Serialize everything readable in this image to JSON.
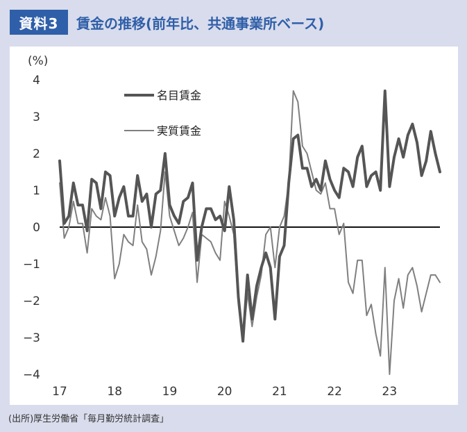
{
  "header": {
    "badge": "資料3",
    "title": "賃金の推移(前年比、共通事業所ベース)"
  },
  "source": "(出所)厚生労働省「毎月勤労統計調査」",
  "chart_data": {
    "type": "line",
    "ylabel": "(%)",
    "ylim": [
      -4,
      4
    ],
    "yticks": [
      "4",
      "3",
      "2",
      "1",
      "0",
      "−1",
      "−2",
      "−3",
      "−4"
    ],
    "xlabels": [
      "17",
      "18",
      "19",
      "20",
      "21",
      "22",
      "23"
    ],
    "legend_position": "top-left",
    "start": "2017-01",
    "series": [
      {
        "name": "名目賃金",
        "color": "#555555",
        "values": [
          1.8,
          0.1,
          0.3,
          1.2,
          0.6,
          0.6,
          -0.1,
          1.3,
          1.2,
          0.5,
          1.5,
          1.4,
          0.3,
          0.8,
          1.1,
          0.3,
          0.3,
          1.4,
          0.7,
          0.9,
          0.0,
          0.9,
          1.0,
          2.0,
          0.6,
          0.3,
          0.1,
          0.7,
          0.8,
          1.2,
          -0.9,
          0.0,
          0.5,
          0.5,
          0.2,
          0.3,
          -0.1,
          1.1,
          0.2,
          -1.9,
          -3.1,
          -1.3,
          -2.5,
          -1.6,
          -1.1,
          -0.7,
          -1.1,
          -2.5,
          -0.8,
          -0.5,
          1.2,
          2.4,
          2.5,
          1.6,
          1.6,
          1.1,
          1.3,
          1.0,
          1.8,
          1.3,
          1.0,
          0.8,
          1.6,
          1.5,
          1.1,
          1.9,
          2.2,
          1.1,
          1.4,
          1.5,
          1.0,
          3.7,
          1.1,
          1.9,
          2.4,
          1.9,
          2.5,
          2.8,
          2.3,
          1.4,
          1.8,
          2.6,
          2.0,
          1.5
        ]
      },
      {
        "name": "実質賃金",
        "color": "#7f7f7f",
        "values": [
          1.2,
          -0.3,
          0.0,
          0.7,
          0.1,
          0.1,
          -0.7,
          0.5,
          0.3,
          0.2,
          0.8,
          0.3,
          -1.4,
          -1.0,
          -0.2,
          -0.4,
          -0.5,
          0.6,
          -0.4,
          -0.6,
          -1.3,
          -0.8,
          -0.1,
          1.5,
          0.3,
          -0.1,
          -0.5,
          -0.3,
          0.0,
          0.4,
          -1.5,
          -0.2,
          -0.3,
          -0.4,
          -0.7,
          -0.9,
          0.7,
          0.3,
          -0.2,
          -2.1,
          -3.1,
          -1.8,
          -2.7,
          -1.9,
          -1.3,
          -0.2,
          0.0,
          -1.1,
          0.0,
          0.3,
          1.2,
          3.7,
          3.4,
          2.2,
          2.0,
          1.5,
          1.0,
          0.9,
          1.2,
          0.5,
          0.5,
          -0.2,
          0.1,
          -1.5,
          -1.8,
          -0.9,
          -0.9,
          -2.4,
          -2.1,
          -2.9,
          -3.5,
          -1.1,
          -4.0,
          -2.0,
          -1.4,
          -2.2,
          -1.3,
          -1.1,
          -1.6,
          -2.3,
          -1.8,
          -1.3,
          -1.3,
          -1.5
        ]
      }
    ]
  }
}
